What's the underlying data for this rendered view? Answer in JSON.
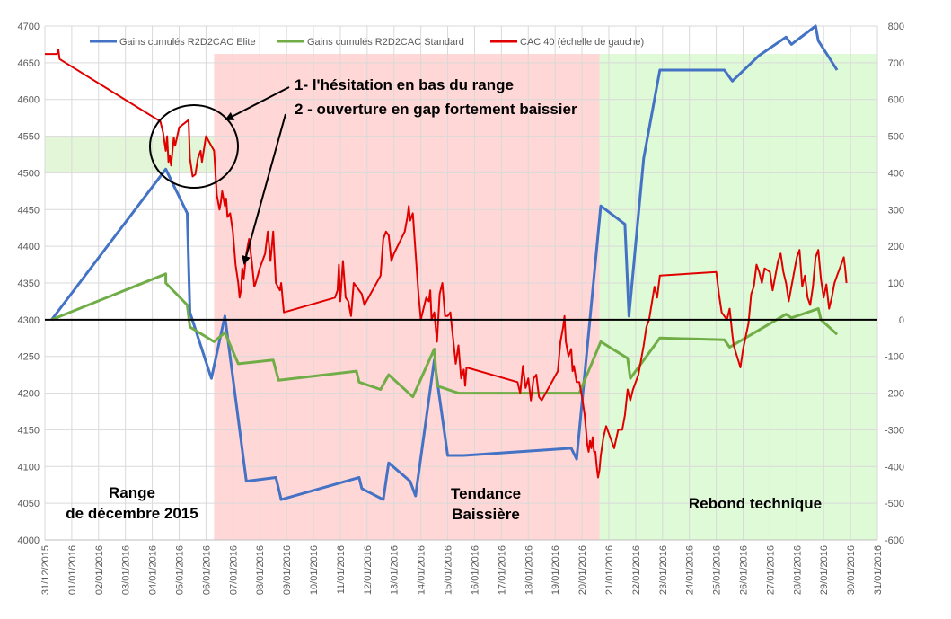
{
  "chart_data": {
    "type": "line",
    "title": "",
    "xlabel": "",
    "ylabel": "",
    "y_left": {
      "min": 4000,
      "max": 4700,
      "ticks": [
        4000,
        4050,
        4100,
        4150,
        4200,
        4250,
        4300,
        4350,
        4400,
        4450,
        4500,
        4550,
        4600,
        4650,
        4700
      ]
    },
    "y_right": {
      "min": -600,
      "max": 800,
      "ticks": [
        -600,
        -500,
        -400,
        -300,
        -200,
        -100,
        0,
        100,
        200,
        300,
        400,
        500,
        600,
        700,
        800
      ]
    },
    "x_range": [
      0,
      31
    ],
    "x_tick_labels": [
      "31/12/2015",
      "01/01/2016",
      "02/01/2016",
      "03/01/2016",
      "04/01/2016",
      "05/01/2016",
      "06/01/2016",
      "07/01/2016",
      "08/01/2016",
      "09/01/2016",
      "10/01/2016",
      "11/01/2016",
      "12/01/2016",
      "13/01/2016",
      "14/01/2016",
      "15/01/2016",
      "16/01/2016",
      "17/01/2016",
      "18/01/2016",
      "19/01/2016",
      "20/01/2016",
      "21/01/2016",
      "22/01/2016",
      "23/01/2016",
      "24/01/2016",
      "25/01/2016",
      "26/01/2016",
      "27/01/2016",
      "28/01/2016",
      "29/01/2016",
      "30/01/2016",
      "31/01/2016"
    ],
    "grid": true,
    "legend_position": "top",
    "zones": [
      {
        "name": "range",
        "label_lines": [
          "Range",
          "de décembre 2015"
        ],
        "x0": 0,
        "x1": 6.3,
        "y0": 4500,
        "y1": 4550,
        "color": "#e3f6d7"
      },
      {
        "name": "baissiere",
        "label_lines": [
          "Tendance",
          "Baissière"
        ],
        "x0": 6.3,
        "x1": 20.65,
        "y0": 4000,
        "y1": 4662,
        "color": "#ffd7d7"
      },
      {
        "name": "rebond",
        "label_lines": [
          "Rebond technique"
        ],
        "x0": 20.65,
        "x1": 31,
        "y0": 4000,
        "y1": 4662,
        "color": "#dffad6"
      }
    ],
    "annotations": [
      "1- l'hésitation en bas du range",
      "2 - ouverture en gap fortement baissier"
    ],
    "zero_line_left_value": 4300,
    "series": [
      {
        "name": "Gains cumulés R2D2CAC Elite",
        "color": "#4472c4",
        "axis": "right",
        "points": [
          [
            0.25,
            0
          ],
          [
            4.5,
            410
          ],
          [
            5.3,
            290
          ],
          [
            5.4,
            20
          ],
          [
            6.2,
            -160
          ],
          [
            6.7,
            10
          ],
          [
            7.5,
            -440
          ],
          [
            8.6,
            -430
          ],
          [
            8.7,
            -460
          ],
          [
            8.8,
            -490
          ],
          [
            11.7,
            -430
          ],
          [
            11.8,
            -460
          ],
          [
            12.6,
            -490
          ],
          [
            12.8,
            -390
          ],
          [
            13.6,
            -440
          ],
          [
            13.8,
            -480
          ],
          [
            14.5,
            -110
          ],
          [
            15,
            -370
          ],
          [
            15.4,
            -370
          ],
          [
            15.6,
            -370
          ],
          [
            19.6,
            -350
          ],
          [
            19.8,
            -380
          ],
          [
            20.7,
            310
          ],
          [
            21.6,
            260
          ],
          [
            21.75,
            10
          ],
          [
            22.3,
            440
          ],
          [
            22.9,
            680
          ],
          [
            25.3,
            680
          ],
          [
            25.6,
            650
          ],
          [
            26.6,
            720
          ],
          [
            27.6,
            770
          ],
          [
            27.8,
            750
          ],
          [
            28.7,
            800
          ],
          [
            28.8,
            760
          ],
          [
            29.5,
            680
          ]
        ]
      },
      {
        "name": "Gains cumulés R2D2CAC Standard",
        "color": "#70ad47",
        "axis": "right",
        "points": [
          [
            0.25,
            0
          ],
          [
            4.5,
            125
          ],
          [
            4.5,
            100
          ],
          [
            5.3,
            40
          ],
          [
            5.4,
            -20
          ],
          [
            6.3,
            -60
          ],
          [
            6.7,
            -35
          ],
          [
            7.2,
            -120
          ],
          [
            8.5,
            -110
          ],
          [
            8.7,
            -165
          ],
          [
            11.6,
            -140
          ],
          [
            11.7,
            -170
          ],
          [
            12.5,
            -190
          ],
          [
            12.8,
            -150
          ],
          [
            13.7,
            -210
          ],
          [
            14.5,
            -80
          ],
          [
            14.6,
            -180
          ],
          [
            15.4,
            -200
          ],
          [
            19.9,
            -200
          ],
          [
            20.7,
            -60
          ],
          [
            21.7,
            -105
          ],
          [
            21.8,
            -160
          ],
          [
            22.9,
            -50
          ],
          [
            25.3,
            -55
          ],
          [
            25.5,
            -75
          ],
          [
            27.6,
            15
          ],
          [
            27.8,
            5
          ],
          [
            28.8,
            30
          ],
          [
            28.9,
            0
          ],
          [
            29.5,
            -40
          ]
        ]
      },
      {
        "name": "CAC 40 (échelle de gauche)",
        "color": "#e00000",
        "axis": "left",
        "points": [
          [
            0,
            4662
          ],
          [
            0.45,
            4662
          ],
          [
            0.5,
            4668
          ],
          [
            0.55,
            4655
          ],
          [
            4.3,
            4570
          ],
          [
            4.4,
            4555
          ],
          [
            4.5,
            4530
          ],
          [
            4.55,
            4550
          ],
          [
            4.6,
            4515
          ],
          [
            4.65,
            4523
          ],
          [
            4.7,
            4510
          ],
          [
            4.8,
            4548
          ],
          [
            4.85,
            4537
          ],
          [
            4.9,
            4545
          ],
          [
            5.0,
            4562
          ],
          [
            5.35,
            4572
          ],
          [
            5.4,
            4520
          ],
          [
            5.5,
            4495
          ],
          [
            5.6,
            4498
          ],
          [
            5.7,
            4520
          ],
          [
            5.8,
            4530
          ],
          [
            5.85,
            4515
          ],
          [
            6.0,
            4550
          ],
          [
            6.3,
            4530
          ],
          [
            6.4,
            4470
          ],
          [
            6.5,
            4450
          ],
          [
            6.55,
            4460
          ],
          [
            6.6,
            4475
          ],
          [
            6.7,
            4455
          ],
          [
            6.75,
            4465
          ],
          [
            6.8,
            4440
          ],
          [
            6.9,
            4445
          ],
          [
            7.0,
            4420
          ],
          [
            7.1,
            4375
          ],
          [
            7.2,
            4350
          ],
          [
            7.25,
            4330
          ],
          [
            7.3,
            4340
          ],
          [
            7.35,
            4370
          ],
          [
            7.4,
            4355
          ],
          [
            7.5,
            4390
          ],
          [
            7.6,
            4410
          ],
          [
            7.7,
            4380
          ],
          [
            7.8,
            4345
          ],
          [
            7.85,
            4350
          ],
          [
            8.0,
            4370
          ],
          [
            8.2,
            4390
          ],
          [
            8.3,
            4420
          ],
          [
            8.4,
            4380
          ],
          [
            8.5,
            4420
          ],
          [
            8.6,
            4350
          ],
          [
            8.75,
            4340
          ],
          [
            8.8,
            4350
          ],
          [
            8.9,
            4310
          ],
          [
            10.8,
            4330
          ],
          [
            10.9,
            4340
          ],
          [
            10.95,
            4375
          ],
          [
            11.0,
            4325
          ],
          [
            11.1,
            4380
          ],
          [
            11.2,
            4330
          ],
          [
            11.3,
            4325
          ],
          [
            11.4,
            4305
          ],
          [
            11.5,
            4350
          ],
          [
            11.8,
            4335
          ],
          [
            11.9,
            4320
          ],
          [
            12.5,
            4360
          ],
          [
            12.6,
            4410
          ],
          [
            12.7,
            4420
          ],
          [
            12.8,
            4415
          ],
          [
            12.9,
            4380
          ],
          [
            13.0,
            4390
          ],
          [
            13.2,
            4405
          ],
          [
            13.4,
            4420
          ],
          [
            13.5,
            4440
          ],
          [
            13.55,
            4455
          ],
          [
            13.6,
            4435
          ],
          [
            13.7,
            4445
          ],
          [
            13.9,
            4340
          ],
          [
            14.0,
            4300
          ],
          [
            14.2,
            4330
          ],
          [
            14.3,
            4325
          ],
          [
            14.35,
            4340
          ],
          [
            14.4,
            4300
          ],
          [
            14.5,
            4310
          ],
          [
            14.6,
            4270
          ],
          [
            14.7,
            4335
          ],
          [
            14.8,
            4350
          ],
          [
            14.9,
            4305
          ],
          [
            15.0,
            4305
          ],
          [
            15.1,
            4310
          ],
          [
            15.3,
            4240
          ],
          [
            15.4,
            4265
          ],
          [
            15.5,
            4220
          ],
          [
            15.6,
            4232
          ],
          [
            15.65,
            4210
          ],
          [
            15.7,
            4235
          ],
          [
            17.6,
            4215
          ],
          [
            17.7,
            4200
          ],
          [
            17.8,
            4237
          ],
          [
            17.9,
            4207
          ],
          [
            18.0,
            4220
          ],
          [
            18.1,
            4190
          ],
          [
            18.2,
            4220
          ],
          [
            18.3,
            4225
          ],
          [
            18.4,
            4195
          ],
          [
            18.5,
            4190
          ],
          [
            19.1,
            4230
          ],
          [
            19.2,
            4270
          ],
          [
            19.3,
            4290
          ],
          [
            19.35,
            4305
          ],
          [
            19.4,
            4270
          ],
          [
            19.5,
            4250
          ],
          [
            19.6,
            4260
          ],
          [
            19.65,
            4230
          ],
          [
            19.7,
            4237
          ],
          [
            19.8,
            4215
          ],
          [
            19.9,
            4215
          ],
          [
            20.0,
            4195
          ],
          [
            20.1,
            4170
          ],
          [
            20.2,
            4130
          ],
          [
            20.25,
            4120
          ],
          [
            20.3,
            4135
          ],
          [
            20.35,
            4125
          ],
          [
            20.4,
            4140
          ],
          [
            20.45,
            4120
          ],
          [
            20.5,
            4120
          ],
          [
            20.55,
            4100
          ],
          [
            20.6,
            4085
          ],
          [
            20.65,
            4095
          ],
          [
            20.7,
            4115
          ],
          [
            20.8,
            4140
          ],
          [
            20.9,
            4155
          ],
          [
            21.2,
            4125
          ],
          [
            21.35,
            4150
          ],
          [
            21.5,
            4150
          ],
          [
            21.6,
            4170
          ],
          [
            21.7,
            4205
          ],
          [
            21.8,
            4190
          ],
          [
            21.9,
            4205
          ],
          [
            22.0,
            4215
          ],
          [
            22.1,
            4225
          ],
          [
            22.3,
            4265
          ],
          [
            22.4,
            4290
          ],
          [
            22.5,
            4300
          ],
          [
            22.7,
            4345
          ],
          [
            22.8,
            4330
          ],
          [
            22.9,
            4360
          ],
          [
            25.0,
            4365
          ],
          [
            25.1,
            4335
          ],
          [
            25.2,
            4310
          ],
          [
            25.4,
            4300
          ],
          [
            25.5,
            4315
          ],
          [
            25.6,
            4280
          ],
          [
            25.65,
            4265
          ],
          [
            25.9,
            4235
          ],
          [
            26.0,
            4260
          ],
          [
            26.2,
            4295
          ],
          [
            26.3,
            4335
          ],
          [
            26.4,
            4345
          ],
          [
            26.5,
            4375
          ],
          [
            26.6,
            4365
          ],
          [
            26.7,
            4350
          ],
          [
            26.8,
            4370
          ],
          [
            27.0,
            4365
          ],
          [
            27.1,
            4340
          ],
          [
            27.3,
            4380
          ],
          [
            27.4,
            4390
          ],
          [
            27.5,
            4365
          ],
          [
            27.6,
            4350
          ],
          [
            27.7,
            4325
          ],
          [
            28.0,
            4385
          ],
          [
            28.1,
            4395
          ],
          [
            28.2,
            4345
          ],
          [
            28.3,
            4360
          ],
          [
            28.4,
            4330
          ],
          [
            28.5,
            4320
          ],
          [
            28.6,
            4345
          ],
          [
            28.7,
            4385
          ],
          [
            28.8,
            4395
          ],
          [
            28.9,
            4355
          ],
          [
            29.0,
            4330
          ],
          [
            29.1,
            4348
          ],
          [
            29.2,
            4315
          ],
          [
            29.3,
            4330
          ],
          [
            29.4,
            4350
          ],
          [
            29.5,
            4360
          ],
          [
            29.6,
            4370
          ],
          [
            29.7,
            4380
          ],
          [
            29.75,
            4385
          ],
          [
            29.8,
            4370
          ],
          [
            29.85,
            4350
          ]
        ]
      }
    ]
  }
}
